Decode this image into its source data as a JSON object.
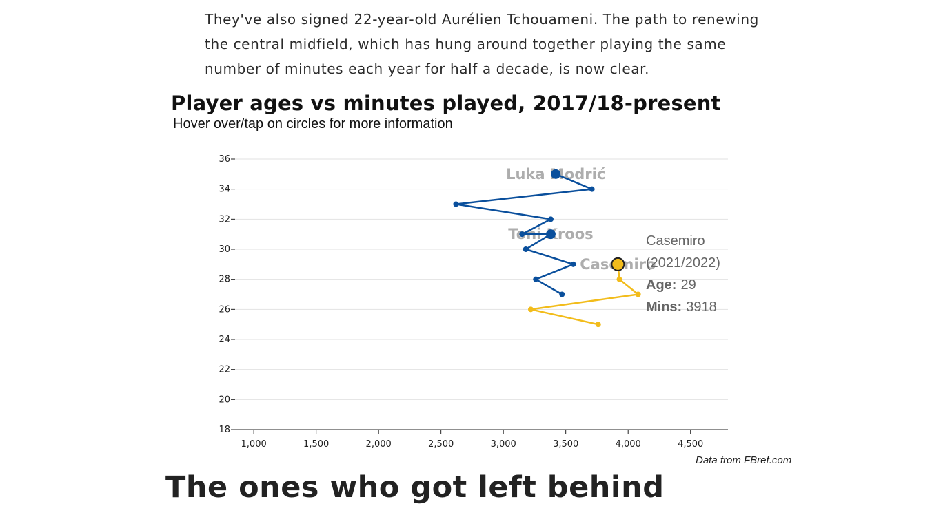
{
  "article": {
    "intro_text": "They've also signed 22-year-old Aurélien Tchouameni. The path to renewing the central midfield, which has hung around together playing the same number of minutes each year for half a decade, is now clear.",
    "section_heading": "The ones who got left behind"
  },
  "chart_header": {
    "title": "Player ages vs minutes played, 2017/18-present",
    "subtitle": "Hover over/tap on circles for more information",
    "credit": "Data from FBref.com"
  },
  "tooltip": {
    "player": "Casemiro",
    "season": "(2021/2022)",
    "age_label": "Age:",
    "age_value": "29",
    "mins_label": "Mins:",
    "mins_value": "3918"
  },
  "chart_data": {
    "type": "line",
    "title": "Player ages vs minutes played, 2017/18-present",
    "subtitle": "Hover over/tap on circles for more information",
    "xlabel": "",
    "ylabel": "",
    "xlim": [
      850,
      4800
    ],
    "ylim": [
      18,
      36.5
    ],
    "x_ticks": [
      1000,
      1500,
      2000,
      2500,
      3000,
      3500,
      4000,
      4500
    ],
    "x_tick_labels": [
      "1,000",
      "1,500",
      "2,000",
      "2,500",
      "3,000",
      "3,500",
      "4,000",
      "4,500"
    ],
    "y_ticks": [
      18,
      20,
      22,
      24,
      26,
      28,
      30,
      32,
      34,
      36
    ],
    "y_tick_labels": [
      "18",
      "20",
      "22",
      "24",
      "26",
      "28",
      "30",
      "32",
      "34",
      "36"
    ],
    "grid": true,
    "series": [
      {
        "name": "Luka Modrić",
        "color": "#0a4f9c",
        "points": [
          {
            "x": 3470,
            "y": 27
          },
          {
            "x": 3260,
            "y": 28
          },
          {
            "x": 3560,
            "y": 29
          },
          {
            "x": 3180,
            "y": 30
          },
          {
            "x": 3380,
            "y": 31
          }
        ]
      },
      {
        "name": "Toni Kroos",
        "color": "#0a4f9c",
        "points": [
          {
            "x": 3380,
            "y": 31
          },
          {
            "x": 3150,
            "y": 31
          },
          {
            "x": 3380,
            "y": 32
          },
          {
            "x": 2620,
            "y": 33
          },
          {
            "x": 3710,
            "y": 34
          },
          {
            "x": 3420,
            "y": 35
          }
        ]
      },
      {
        "name": "Casemiro",
        "color": "#f2bc1b",
        "points": [
          {
            "x": 3760,
            "y": 25
          },
          {
            "x": 3220,
            "y": 26
          },
          {
            "x": 4080,
            "y": 27
          },
          {
            "x": 3930,
            "y": 28
          },
          {
            "x": 3918,
            "y": 29
          }
        ]
      }
    ],
    "point_labels": [
      {
        "text": "Luka Modrić",
        "x": 3420,
        "y": 35
      },
      {
        "text": "Toni Kroos",
        "x": 3380,
        "y": 31
      },
      {
        "text": "Casemiro",
        "x": 3918,
        "y": 29
      }
    ],
    "highlight": {
      "series": "Casemiro",
      "x": 3918,
      "y": 29
    }
  }
}
